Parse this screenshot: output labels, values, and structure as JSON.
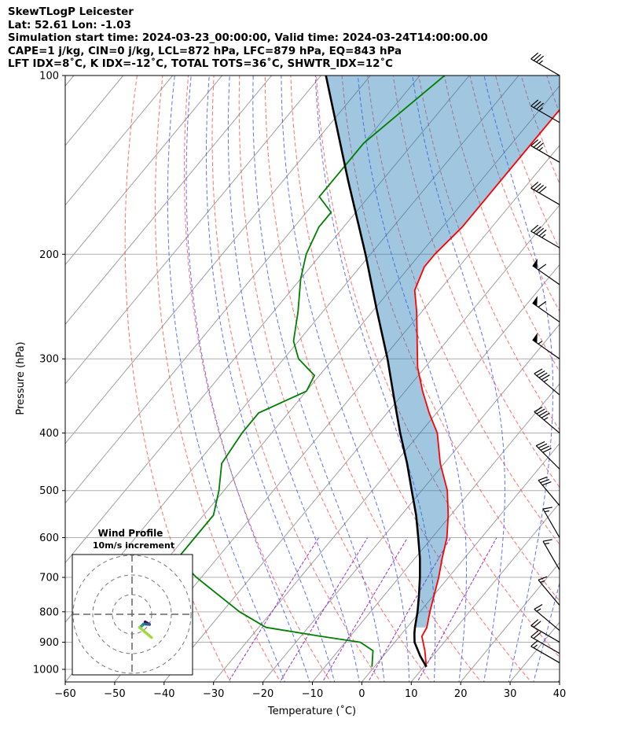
{
  "header": {
    "line1": "SkewTLogP Leicester",
    "line2": "Lat: 52.61   Lon: -1.03",
    "line3": "Simulation start time: 2024-03-23_00:00:00, Valid time: 2024-03-24T14:00:00.00",
    "line4": "CAPE=1 j/kg, CIN=0 j/kg, LCL=872 hPa, LFC=879 hPa, EQ=843 hPa",
    "line5": "LFT IDX=8˚C, K IDX=-12˚C, TOTAL TOTS=36˚C, SHWTR_IDX=12˚C"
  },
  "inset": {
    "title": "Wind Profile",
    "subtitle": "10m/s increment"
  },
  "colors": {
    "temperature": "#ff0000",
    "dewpoint": "#008000",
    "parcel": "#000000",
    "cape_fill": "#1f77b4",
    "dry_adiabat": "#ff4040",
    "moist_adiabat": "#3a4dff",
    "mixing_ratio": "#9b30c8",
    "isotherm": "#a0a0a0",
    "isobar": "#b0b0b0",
    "wind_barb": "#000000"
  },
  "chart_data": {
    "type": "line",
    "xlabel": "Temperature (˚C)",
    "ylabel": "Pressure (hPa)",
    "xlim": [
      -60,
      40
    ],
    "ylim": [
      1050,
      100
    ],
    "y_scale": "log",
    "grid": true,
    "x_ticks": [
      "−60",
      "−50",
      "−40",
      "−30",
      "−20",
      "−10",
      "0",
      "10",
      "20",
      "30",
      "40"
    ],
    "y_ticks": [
      "100",
      "200",
      "300",
      "400",
      "500",
      "600",
      "700",
      "800",
      "900",
      "1000"
    ],
    "series": [
      {
        "key": "temperature",
        "pressure": [
          990,
          930,
          880,
          850,
          800,
          700,
          650,
          600,
          550,
          500,
          450,
          400,
          370,
          340,
          310,
          280,
          250,
          230,
          210,
          200,
          180,
          160,
          150,
          130,
          120,
          110,
          100
        ],
        "values": [
          10.5,
          7.5,
          4.5,
          4.0,
          2.0,
          -2.0,
          -4.5,
          -7.0,
          -10.5,
          -14.8,
          -20.8,
          -26.5,
          -31.5,
          -36.5,
          -41.5,
          -46.0,
          -51.0,
          -55.0,
          -57.0,
          -57.0,
          -56.0,
          -56.0,
          -56.0,
          -56.0,
          -56.0,
          -56.0,
          -56.0
        ]
      },
      {
        "key": "dewpoint",
        "pressure": [
          990,
          930,
          900,
          880,
          850,
          800,
          700,
          650,
          600,
          550,
          500,
          450,
          400,
          370,
          340,
          320,
          300,
          280,
          250,
          220,
          200,
          180,
          170,
          160,
          150,
          130,
          100
        ],
        "values": [
          -0.5,
          -3.0,
          -7.0,
          -15.8,
          -28.5,
          -36.5,
          -51.0,
          -58.0,
          -58.0,
          -58.0,
          -61.0,
          -65.0,
          -66.0,
          -66.0,
          -60.0,
          -61.0,
          -67.0,
          -71.0,
          -75.0,
          -80.0,
          -83.0,
          -85.0,
          -85.0,
          -90.0,
          -90.0,
          -90.0,
          -85.0
        ]
      },
      {
        "key": "parcel",
        "pressure": [
          990,
          950,
          900,
          870,
          850,
          800,
          750,
          700,
          650,
          600,
          550,
          500,
          450,
          400,
          350,
          300,
          250,
          200,
          150,
          100
        ],
        "values": [
          10.5,
          7.5,
          4.0,
          2.5,
          1.6,
          -0.5,
          -3.0,
          -5.8,
          -9.0,
          -12.8,
          -17.0,
          -22.0,
          -27.5,
          -34.0,
          -41.0,
          -49.0,
          -59.0,
          -71.0,
          -87.0,
          -109.0
        ]
      }
    ],
    "winds": [
      {
        "pressure": 100,
        "speed_kt": 35,
        "direction_deg": 300
      },
      {
        "pressure": 120,
        "speed_kt": 35,
        "direction_deg": 300
      },
      {
        "pressure": 140,
        "speed_kt": 35,
        "direction_deg": 300
      },
      {
        "pressure": 165,
        "speed_kt": 40,
        "direction_deg": 300
      },
      {
        "pressure": 195,
        "speed_kt": 45,
        "direction_deg": 300
      },
      {
        "pressure": 225,
        "speed_kt": 60,
        "direction_deg": 305
      },
      {
        "pressure": 260,
        "speed_kt": 60,
        "direction_deg": 305
      },
      {
        "pressure": 300,
        "speed_kt": 55,
        "direction_deg": 305
      },
      {
        "pressure": 345,
        "speed_kt": 45,
        "direction_deg": 310
      },
      {
        "pressure": 400,
        "speed_kt": 45,
        "direction_deg": 310
      },
      {
        "pressure": 460,
        "speed_kt": 40,
        "direction_deg": 315
      },
      {
        "pressure": 530,
        "speed_kt": 30,
        "direction_deg": 320
      },
      {
        "pressure": 600,
        "speed_kt": 15,
        "direction_deg": 330
      },
      {
        "pressure": 680,
        "speed_kt": 15,
        "direction_deg": 330
      },
      {
        "pressure": 780,
        "speed_kt": 15,
        "direction_deg": 320
      },
      {
        "pressure": 860,
        "speed_kt": 15,
        "direction_deg": 310
      },
      {
        "pressure": 900,
        "speed_kt": 20,
        "direction_deg": 300
      },
      {
        "pressure": 940,
        "speed_kt": 20,
        "direction_deg": 300
      },
      {
        "pressure": 975,
        "speed_kt": 15,
        "direction_deg": 300
      }
    ]
  }
}
